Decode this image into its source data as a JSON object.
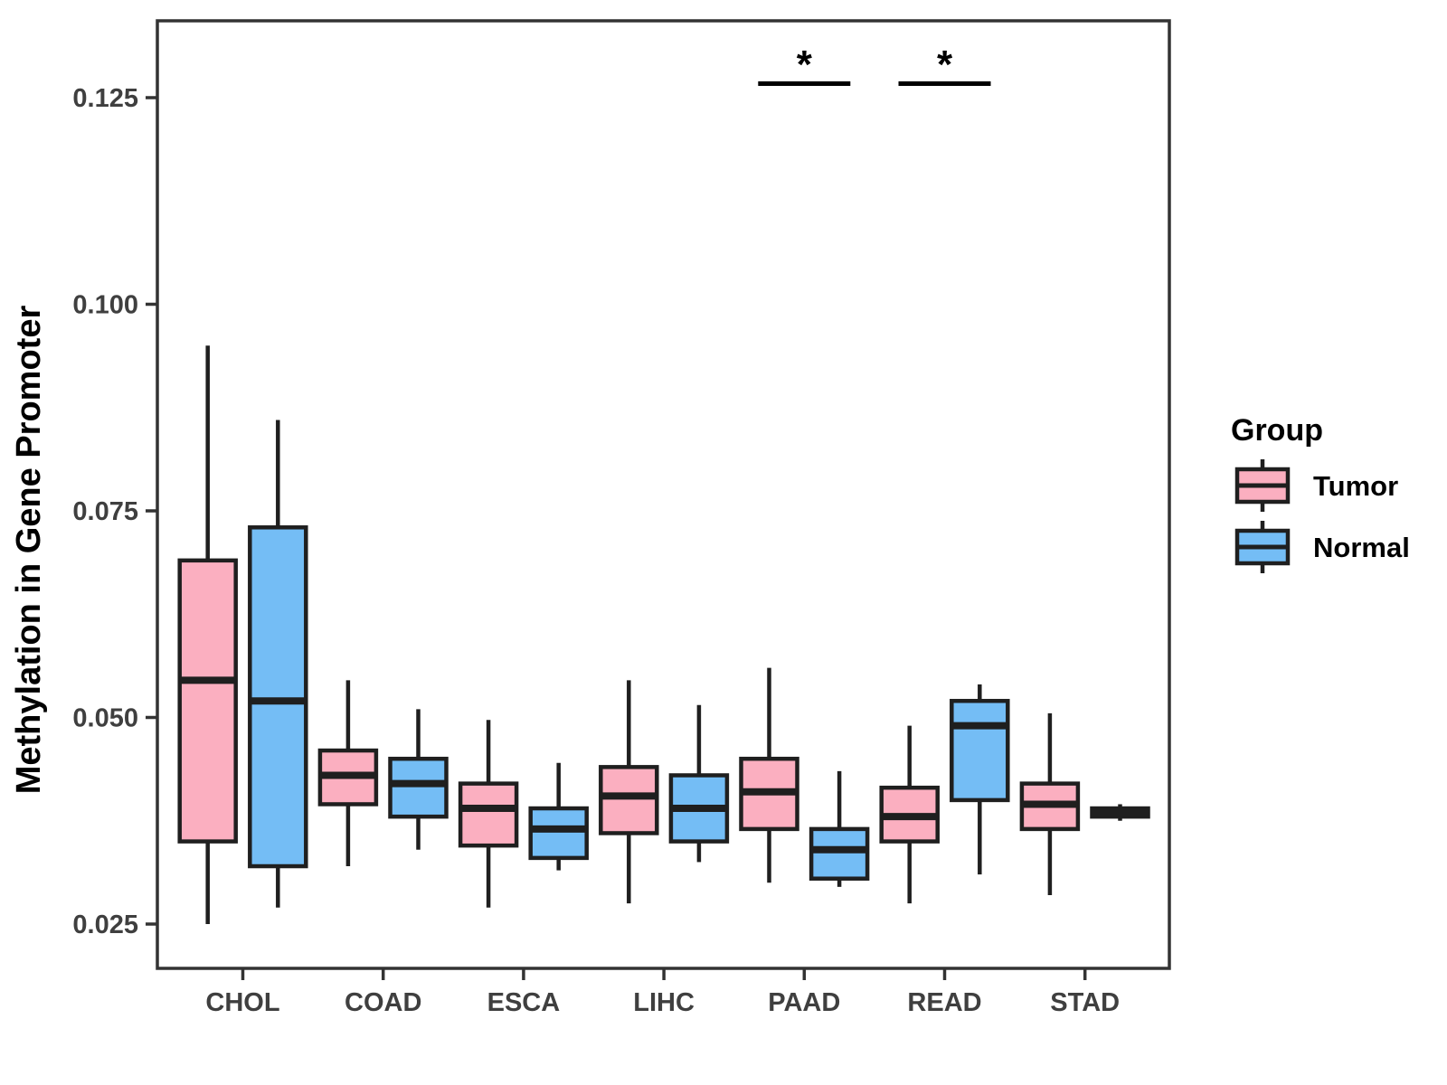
{
  "chart_data": {
    "type": "boxplot",
    "title": "",
    "xlabel": "",
    "ylabel": "Methylation in Gene Promoter",
    "categories": [
      "CHOL",
      "COAD",
      "ESCA",
      "LIHC",
      "PAAD",
      "READ",
      "STAD"
    ],
    "y_ticks": [
      {
        "value": 0.125,
        "label": "0.125"
      },
      {
        "value": 0.1,
        "label": "0.100"
      },
      {
        "value": 0.075,
        "label": "0.075"
      },
      {
        "value": 0.05,
        "label": "0.050"
      },
      {
        "value": 0.025,
        "label": "0.025"
      }
    ],
    "ylim": [
      0.0195,
      0.1343
    ],
    "grid": false,
    "legend": {
      "title": "Group",
      "position": "right"
    },
    "series": [
      {
        "name": "Tumor",
        "color": "#FBAFC0",
        "boxes": [
          {
            "category": "CHOL",
            "min": 0.025,
            "q1": 0.035,
            "median": 0.0545,
            "q3": 0.069,
            "max": 0.095
          },
          {
            "category": "COAD",
            "min": 0.032,
            "q1": 0.0395,
            "median": 0.043,
            "q3": 0.046,
            "max": 0.0545
          },
          {
            "category": "ESCA",
            "min": 0.027,
            "q1": 0.0345,
            "median": 0.039,
            "q3": 0.042,
            "max": 0.0497
          },
          {
            "category": "LIHC",
            "min": 0.0275,
            "q1": 0.036,
            "median": 0.0405,
            "q3": 0.044,
            "max": 0.0545
          },
          {
            "category": "PAAD",
            "min": 0.03,
            "q1": 0.0365,
            "median": 0.041,
            "q3": 0.045,
            "max": 0.056
          },
          {
            "category": "READ",
            "min": 0.0275,
            "q1": 0.035,
            "median": 0.038,
            "q3": 0.0415,
            "max": 0.049
          },
          {
            "category": "STAD",
            "min": 0.0285,
            "q1": 0.0365,
            "median": 0.0395,
            "q3": 0.042,
            "max": 0.0505
          }
        ]
      },
      {
        "name": "Normal",
        "color": "#74BDF5",
        "boxes": [
          {
            "category": "CHOL",
            "min": 0.027,
            "q1": 0.032,
            "median": 0.052,
            "q3": 0.073,
            "max": 0.086
          },
          {
            "category": "COAD",
            "min": 0.034,
            "q1": 0.038,
            "median": 0.042,
            "q3": 0.045,
            "max": 0.051
          },
          {
            "category": "ESCA",
            "min": 0.0315,
            "q1": 0.033,
            "median": 0.0365,
            "q3": 0.039,
            "max": 0.0445
          },
          {
            "category": "LIHC",
            "min": 0.0325,
            "q1": 0.035,
            "median": 0.039,
            "q3": 0.043,
            "max": 0.0515
          },
          {
            "category": "PAAD",
            "min": 0.0295,
            "q1": 0.0305,
            "median": 0.034,
            "q3": 0.0365,
            "max": 0.0435
          },
          {
            "category": "READ",
            "min": 0.031,
            "q1": 0.04,
            "median": 0.049,
            "q3": 0.052,
            "max": 0.054
          },
          {
            "category": "STAD",
            "min": 0.0375,
            "q1": 0.038,
            "median": 0.0385,
            "q3": 0.039,
            "max": 0.0395
          }
        ]
      }
    ],
    "annotations": [
      {
        "category": "PAAD",
        "symbol": "*"
      },
      {
        "category": "READ",
        "symbol": "*"
      }
    ],
    "style": {
      "box_stroke": "#1F1F1F",
      "axis_color": "#333333",
      "axis_text_color": "#3F3F3F",
      "background": "#FFFFFF"
    }
  }
}
